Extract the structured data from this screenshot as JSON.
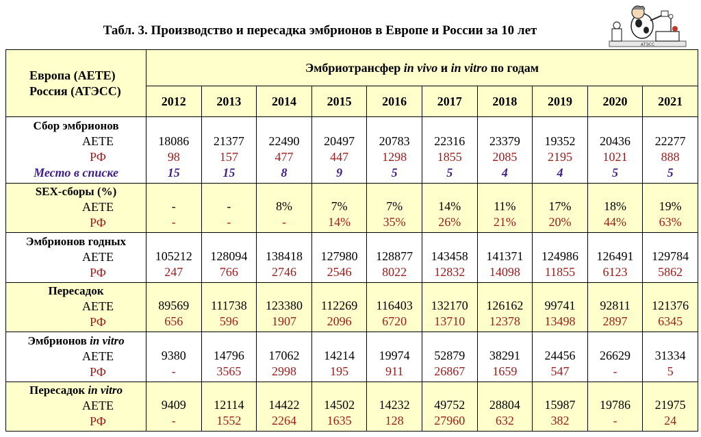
{
  "page_title": "Табл. 3. Производство и пересадка эмбрионов в Европе и России за 10 лет",
  "logo": {
    "icon": "cow-scientist-logo",
    "text": "АТЭСС"
  },
  "header": {
    "corner_line1": "Европа (АЕТЕ)",
    "corner_line2": "Россия (АТЭСС)",
    "span_part1": "Эмбриотрансфер ",
    "span_part2": "in vivo",
    "span_part3": " и ",
    "span_part4": "in vitro",
    "span_part5": " по годам",
    "years": [
      "2012",
      "2013",
      "2014",
      "2015",
      "2016",
      "2017",
      "2018",
      "2019",
      "2020",
      "2021"
    ]
  },
  "sections": [
    {
      "title": "Сбор эмбрионов",
      "title_italic": "",
      "sub1": "АЕТЕ",
      "sub2": "РФ",
      "sub3": "Место в списке",
      "bg": "white",
      "row1": [
        "18086",
        "21377",
        "22490",
        "20497",
        "20783",
        "22316",
        "23379",
        "19352",
        "20436",
        "22277"
      ],
      "row2": [
        "98",
        "157",
        "477",
        "447",
        "1298",
        "1855",
        "2085",
        "2195",
        "1021",
        "888"
      ],
      "row3": [
        "15",
        "15",
        "8",
        "9",
        "5",
        "5",
        "4",
        "4",
        "5",
        "5"
      ]
    },
    {
      "title": "SEX-сборы (%)",
      "title_italic": "",
      "sub1": "АЕТЕ",
      "sub2": "РФ",
      "bg": "yellow",
      "row1": [
        "-",
        "-",
        "8%",
        "7%",
        "7%",
        "14%",
        "11%",
        "17%",
        "18%",
        "19%"
      ],
      "row2": [
        "-",
        "-",
        "-",
        "14%",
        "35%",
        "26%",
        "21%",
        "20%",
        "44%",
        "63%"
      ]
    },
    {
      "title": "Эмбрионов годных",
      "title_italic": "",
      "sub1": "АЕТЕ",
      "sub2": "РФ",
      "bg": "white",
      "row1": [
        "105212",
        "128094",
        "138418",
        "127980",
        "128877",
        "143458",
        "141371",
        "124986",
        "126491",
        "129784"
      ],
      "row2": [
        "247",
        "766",
        "2746",
        "2546",
        "8022",
        "12832",
        "14098",
        "11855",
        "6123",
        "5862"
      ]
    },
    {
      "title": "Пересадок",
      "title_italic": "",
      "sub1": "АЕТЕ",
      "sub2": "РФ",
      "bg": "yellow",
      "row1": [
        "89569",
        "111738",
        "123380",
        "112269",
        "116403",
        "132170",
        "126162",
        "99741",
        "92811",
        "121376"
      ],
      "row2": [
        "656",
        "596",
        "1907",
        "2096",
        "6720",
        "13710",
        "12378",
        "13498",
        "2897",
        "6345"
      ]
    },
    {
      "title": "Эмбрионов ",
      "title_italic": "in vitro",
      "sub1": "АЕТЕ",
      "sub2": "РФ",
      "bg": "white",
      "row1": [
        "9380",
        "14796",
        "17062",
        "14214",
        "19974",
        "52879",
        "38291",
        "24456",
        "26629",
        "31334"
      ],
      "row2": [
        "-",
        "3565",
        "2998",
        "195",
        "911",
        "26867",
        "1659",
        "547",
        "-",
        "5"
      ]
    },
    {
      "title": "Пересадок ",
      "title_italic": "in vitro",
      "sub1": "АЕТЕ",
      "sub2": "РФ",
      "bg": "yellow",
      "row1": [
        "9409",
        "12114",
        "14422",
        "14502",
        "14232",
        "49752",
        "28804",
        "15987",
        "19786",
        "21975"
      ],
      "row2": [
        "-",
        "1552",
        "2264",
        "1635",
        "128",
        "27960",
        "632",
        "382",
        "-",
        "24"
      ]
    }
  ],
  "colors": {
    "header_bg": "#ffffcc",
    "rf_text": "#9b1b1b",
    "rank_text": "#3f1e8a"
  }
}
